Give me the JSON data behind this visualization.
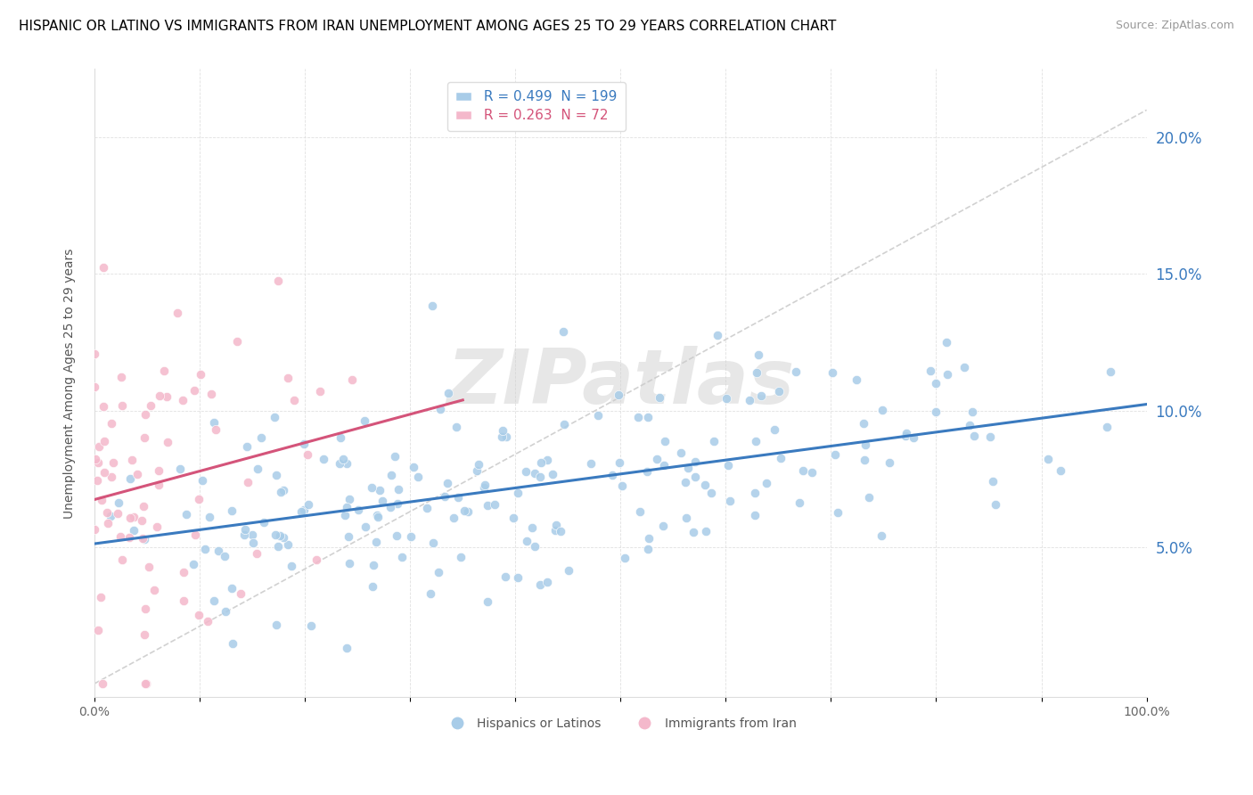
{
  "title": "HISPANIC OR LATINO VS IMMIGRANTS FROM IRAN UNEMPLOYMENT AMONG AGES 25 TO 29 YEARS CORRELATION CHART",
  "source": "Source: ZipAtlas.com",
  "xlabel_ticks": [
    "0.0%",
    "",
    "",
    "",
    "",
    "",
    "",
    "",
    "",
    "",
    "100.0%"
  ],
  "ylabel_ticks": [
    "5.0%",
    "10.0%",
    "15.0%",
    "20.0%"
  ],
  "xlim": [
    0,
    1.0
  ],
  "ylim": [
    -0.005,
    0.225
  ],
  "ylabel": "Unemployment Among Ages 25 to 29 years",
  "blue_color": "#a8cce8",
  "pink_color": "#f4b8cb",
  "blue_line_color": "#3a7abf",
  "pink_line_color": "#d4547a",
  "legend_R_blue": "0.499",
  "legend_N_blue": "199",
  "legend_R_pink": "0.263",
  "legend_N_pink": "72",
  "watermark_text": "ZIPatlas",
  "title_fontsize": 11,
  "source_fontsize": 9,
  "label_fontsize": 10,
  "tick_fontsize": 10,
  "blue_n": 199,
  "pink_n": 72,
  "blue_R": 0.499,
  "pink_R": 0.263
}
